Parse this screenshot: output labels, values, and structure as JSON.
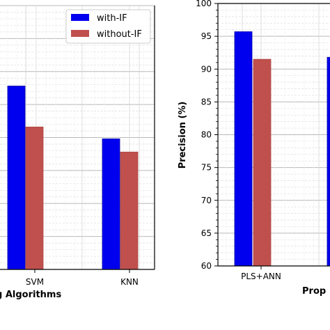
{
  "chart_data": [
    {
      "type": "bar",
      "title": "",
      "xlabel": "g Algorithms",
      "ylabel": "",
      "categories": [
        "SVM",
        "KNN"
      ],
      "series": [
        {
          "name": "with-IF",
          "color": "#0000ee",
          "values": [
            87.8,
            79.8
          ]
        },
        {
          "name": "without-IF",
          "color": "#c0504d",
          "values": [
            81.6,
            77.8
          ]
        }
      ],
      "ylim": [
        60,
        100
      ],
      "grid": true,
      "legend": "top-right",
      "ytick_labels_visible": false
    },
    {
      "type": "bar",
      "title": "",
      "xlabel": "Prop",
      "ylabel": "Precision (%)",
      "categories": [
        "PLS+ANN",
        ""
      ],
      "series": [
        {
          "name": "with-IF",
          "color": "#0000ee",
          "values": [
            95.7,
            91.8
          ]
        },
        {
          "name": "without-IF",
          "color": "#c0504d",
          "values": [
            91.5,
            null
          ]
        }
      ],
      "ylim": [
        60,
        100
      ],
      "yticks": [
        "60",
        "65",
        "70",
        "75",
        "80",
        "85",
        "90",
        "95",
        "100"
      ],
      "grid": true
    }
  ]
}
